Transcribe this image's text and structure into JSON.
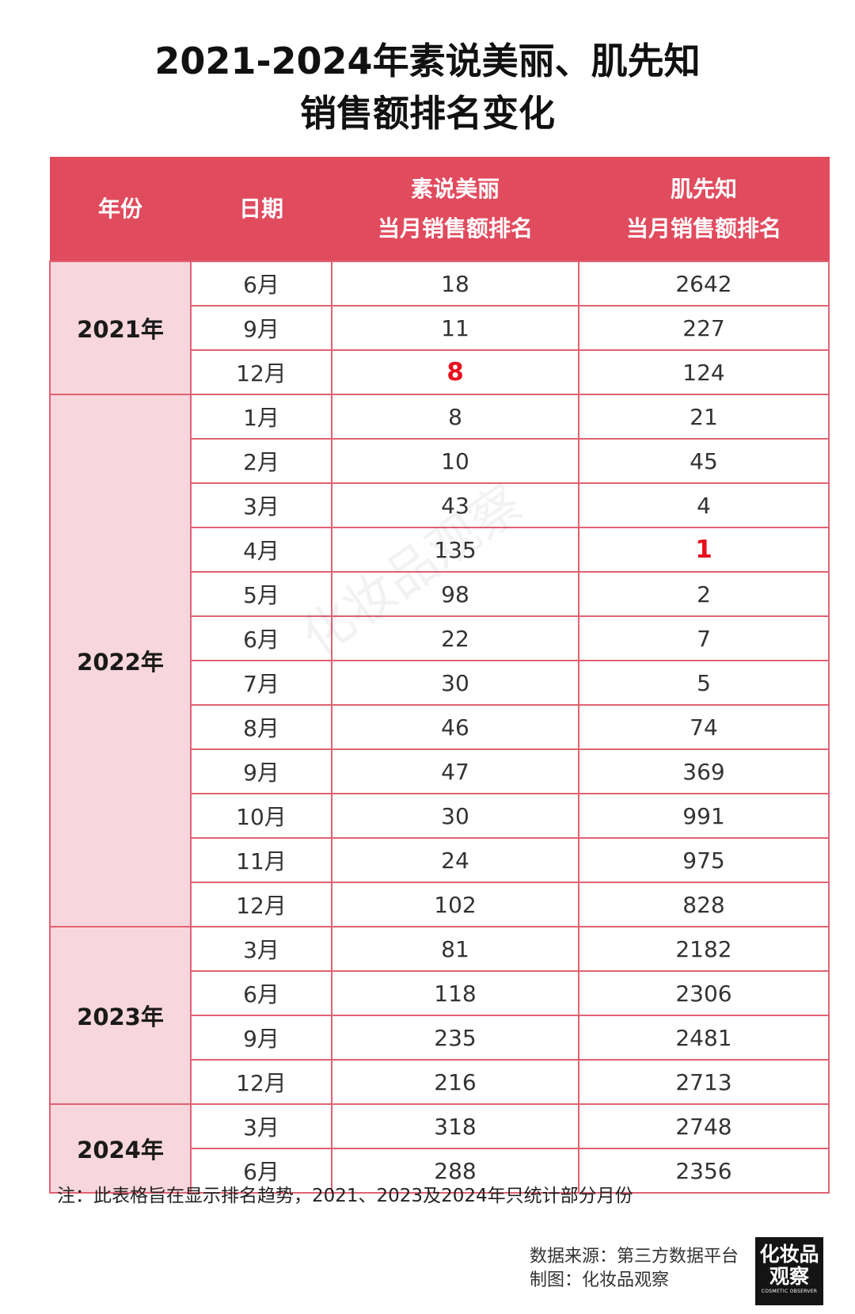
{
  "title": {
    "line1": "2021-2024年素说美丽、肌先知",
    "line2": "销售额排名变化"
  },
  "table": {
    "headers": {
      "year": "年份",
      "date": "日期",
      "brand1_name": "素说美丽",
      "brand1_sub": "当月销售额排名",
      "brand2_name": "肌先知",
      "brand2_sub": "当月销售额排名"
    },
    "groups": [
      {
        "year": "2021年",
        "rows": [
          {
            "month": "6月",
            "a": "18",
            "b": "2642"
          },
          {
            "month": "9月",
            "a": "11",
            "b": "227"
          },
          {
            "month": "12月",
            "a": "8",
            "b": "124",
            "highlight": "a"
          }
        ]
      },
      {
        "year": "2022年",
        "rows": [
          {
            "month": "1月",
            "a": "8",
            "b": "21"
          },
          {
            "month": "2月",
            "a": "10",
            "b": "45"
          },
          {
            "month": "3月",
            "a": "43",
            "b": "4"
          },
          {
            "month": "4月",
            "a": "135",
            "b": "1",
            "highlight": "b"
          },
          {
            "month": "5月",
            "a": "98",
            "b": "2"
          },
          {
            "month": "6月",
            "a": "22",
            "b": "7"
          },
          {
            "month": "7月",
            "a": "30",
            "b": "5"
          },
          {
            "month": "8月",
            "a": "46",
            "b": "74"
          },
          {
            "month": "9月",
            "a": "47",
            "b": "369"
          },
          {
            "month": "10月",
            "a": "30",
            "b": "991"
          },
          {
            "month": "11月",
            "a": "24",
            "b": "975"
          },
          {
            "month": "12月",
            "a": "102",
            "b": "828"
          }
        ]
      },
      {
        "year": "2023年",
        "rows": [
          {
            "month": "3月",
            "a": "81",
            "b": "2182"
          },
          {
            "month": "6月",
            "a": "118",
            "b": "2306"
          },
          {
            "month": "9月",
            "a": "235",
            "b": "2481"
          },
          {
            "month": "12月",
            "a": "216",
            "b": "2713"
          }
        ]
      },
      {
        "year": "2024年",
        "rows": [
          {
            "month": "3月",
            "a": "318",
            "b": "2748"
          },
          {
            "month": "6月",
            "a": "288",
            "b": "2356"
          }
        ]
      }
    ]
  },
  "watermark": "化妆品观察",
  "note": "注：此表格旨在显示排名趋势，2021、2023及2024年只统计部分月份",
  "source": {
    "data_source": "数据来源：第三方数据平台",
    "made_by": "制图：化妆品观察"
  },
  "logo": {
    "line1": "化妆品",
    "line2": "观察",
    "line3": "COSMETIC OBSERVER"
  },
  "colors": {
    "header_bg": "#e14b5e",
    "year_cell_bg": "#f8d6dd",
    "highlight": "#e8101e"
  }
}
